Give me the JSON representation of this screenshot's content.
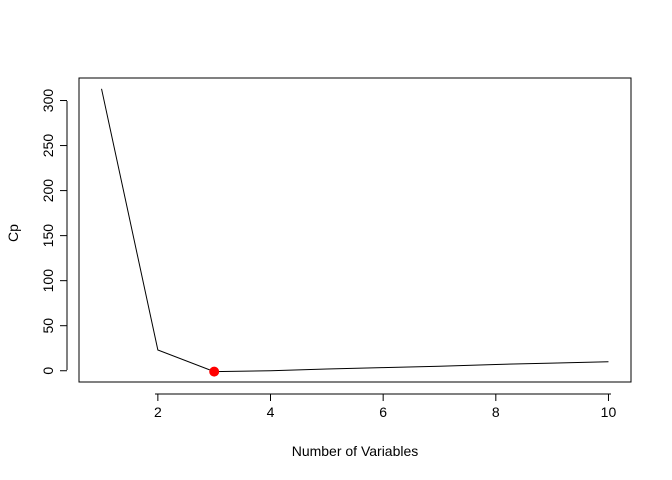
{
  "chart_data": {
    "type": "line",
    "title": "",
    "xlabel": "Number of Variables",
    "ylabel": "Cp",
    "xlim": [
      0.6,
      10.4
    ],
    "ylim": [
      -12.5,
      325
    ],
    "x_ticks": [
      2,
      4,
      6,
      8,
      10
    ],
    "x_tick_labels": [
      "2",
      "4",
      "6",
      "8",
      "10"
    ],
    "y_ticks": [
      0,
      50,
      100,
      150,
      200,
      250,
      300
    ],
    "y_tick_labels": [
      "0",
      "50",
      "100",
      "150",
      "200",
      "250",
      "300"
    ],
    "grid": false,
    "series": [
      {
        "name": "Cp",
        "x": [
          1,
          2,
          3,
          4,
          5,
          6,
          7,
          8,
          9,
          10
        ],
        "values": [
          313,
          23,
          -1,
          0,
          2,
          3.5,
          5,
          7,
          8.5,
          10
        ],
        "color": "#000000"
      }
    ],
    "highlight": {
      "x": 3,
      "y": -1,
      "color": "#ff0000"
    }
  }
}
